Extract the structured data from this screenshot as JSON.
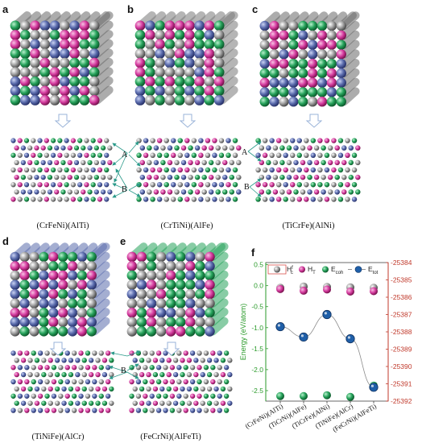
{
  "panels": [
    {
      "id": "a",
      "letter": "a",
      "caption": "(CrFeNi)(AlTi)",
      "stripe": "#6a6a6a",
      "palette": [
        "#5b6cad",
        "#d63ca0",
        "#27a35c",
        "#9a9a9a"
      ]
    },
    {
      "id": "b",
      "letter": "b",
      "caption": "(CrTiNi)(AlFe)",
      "stripe": "#7a7a7a",
      "palette": [
        "#d63ca0",
        "#9a9a9a",
        "#27a35c",
        "#5b6cad"
      ]
    },
    {
      "id": "c",
      "letter": "c",
      "caption": "(TiCrFe)(AlNi)",
      "stripe": "#6a6a6a",
      "palette": [
        "#9a9a9a",
        "#27a35c",
        "#5b6cad",
        "#d63ca0"
      ]
    },
    {
      "id": "d",
      "letter": "d",
      "caption": "(TiNiFe)(AlCr)",
      "stripe": "#5b6cad",
      "palette": [
        "#5b6cad",
        "#d63ca0",
        "#9a9a9a",
        "#27a35c"
      ]
    },
    {
      "id": "e",
      "letter": "e",
      "caption": "(FeCrNi)(AlFeTi)",
      "stripe": "#27a35c",
      "palette": [
        "#27a35c",
        "#5b6cad",
        "#d63ca0",
        "#9a9a9a"
      ]
    }
  ],
  "site_labels": {
    "a": "A",
    "b": "B"
  },
  "colors": {
    "blue": "#5b6cad",
    "pink": "#d63ca0",
    "green": "#27a35c",
    "gray": "#9a9a9a",
    "arrow": "#2b9a8a",
    "right_axis": "#c0392b",
    "left_axis": "#2a9a2a"
  },
  "chart_data": {
    "panel_label": "f",
    "type": "scatter",
    "categories": [
      "(CrFeNi)(AlTi)",
      "(TiCrNi)(AlFe)",
      "(TiCrFe)(AlNi)",
      "(TiNiFe)(AlCr)",
      "(FeCrNi)(AlFeTi)"
    ],
    "ylabel": "Energy (eV/atom)",
    "ylim": [
      -2.75,
      0.55
    ],
    "yticks": [
      "0.5",
      "0.0",
      "-0.5",
      "-1.0",
      "-1.5",
      "-2.0",
      "-2.5"
    ],
    "y2lim": [
      -25392,
      -25384
    ],
    "y2ticks": [
      "-25384",
      "-25385",
      "-25386",
      "-25387",
      "-25388",
      "-25389",
      "-25390",
      "-25391",
      "-25392"
    ],
    "legend": [
      "H_c^f",
      "H_T",
      "E_coh",
      "E_tot"
    ],
    "series": [
      {
        "name": "H_c^f",
        "axis": "left",
        "color": "#888888",
        "values": [
          -0.05,
          -0.02,
          -0.03,
          -0.04,
          -0.05
        ]
      },
      {
        "name": "H_T",
        "axis": "left",
        "color": "#e0228f",
        "values": [
          -0.08,
          -0.12,
          -0.09,
          -0.14,
          -0.13
        ]
      },
      {
        "name": "E_coh",
        "axis": "left",
        "color": "#2a9a2a",
        "values": [
          -2.63,
          -2.63,
          -2.61,
          -2.65,
          -2.38
        ]
      },
      {
        "name": "E_tot",
        "axis": "right",
        "color": "#1f5fa8",
        "values": [
          -25387.7,
          -25388.3,
          -25387.0,
          -25388.4,
          -25391.2
        ]
      }
    ]
  }
}
